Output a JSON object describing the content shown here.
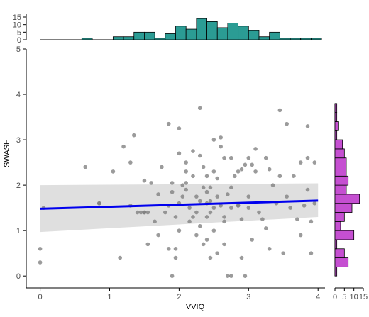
{
  "chart_data": {
    "type": "scatter",
    "xlabel": "VVIQ",
    "ylabel": "SWASH",
    "xlim": [
      -0.2,
      4.1
    ],
    "ylim": [
      -0.2,
      5.0
    ],
    "x_ticks": [
      "0",
      "1",
      "2",
      "3",
      "4"
    ],
    "y_ticks": [
      "0",
      "1",
      "2",
      "3",
      "4",
      "5"
    ],
    "grid": false,
    "colors": {
      "points": "#7f7f7f",
      "regression_line": "#0000ee",
      "confidence_band": "#d9d9d9",
      "top_histogram": "#2b9c94",
      "right_histogram": "#c54fd1"
    },
    "points": [
      [
        0.0,
        0.6
      ],
      [
        0.0,
        0.3
      ],
      [
        0.05,
        1.5
      ],
      [
        0.65,
        2.4
      ],
      [
        0.85,
        1.6
      ],
      [
        1.05,
        2.3
      ],
      [
        1.15,
        0.4
      ],
      [
        1.2,
        2.85
      ],
      [
        1.3,
        2.5
      ],
      [
        1.3,
        1.55
      ],
      [
        1.4,
        1.4
      ],
      [
        1.45,
        1.4
      ],
      [
        1.5,
        1.4
      ],
      [
        1.5,
        2.1
      ],
      [
        1.55,
        1.4
      ],
      [
        1.55,
        0.7
      ],
      [
        1.6,
        2.05
      ],
      [
        1.65,
        1.2
      ],
      [
        1.7,
        1.8
      ],
      [
        1.7,
        0.9
      ],
      [
        1.75,
        2.4
      ],
      [
        1.8,
        1.4
      ],
      [
        1.85,
        1.55
      ],
      [
        1.85,
        0.6
      ],
      [
        1.95,
        1.3
      ],
      [
        1.95,
        0.4
      ],
      [
        2.0,
        1.6
      ],
      [
        2.0,
        1.0
      ],
      [
        2.05,
        1.75
      ],
      [
        2.1,
        2.3
      ],
      [
        2.1,
        2.05
      ],
      [
        2.1,
        1.9
      ],
      [
        2.15,
        1.5
      ],
      [
        2.15,
        1.2
      ],
      [
        2.2,
        2.2
      ],
      [
        2.25,
        1.75
      ],
      [
        2.25,
        1.4
      ],
      [
        2.25,
        0.9
      ],
      [
        2.3,
        2.65
      ],
      [
        2.3,
        1.65
      ],
      [
        2.3,
        1.1
      ],
      [
        2.35,
        2.4
      ],
      [
        2.4,
        1.85
      ],
      [
        2.4,
        1.6
      ],
      [
        2.4,
        1.3
      ],
      [
        2.4,
        0.8
      ],
      [
        2.45,
        1.95
      ],
      [
        2.45,
        1.4
      ],
      [
        2.5,
        2.3
      ],
      [
        2.5,
        1.5
      ],
      [
        2.5,
        1.0
      ],
      [
        2.55,
        1.75
      ],
      [
        2.55,
        0.5
      ],
      [
        2.6,
        2.85
      ],
      [
        2.6,
        1.55
      ],
      [
        2.65,
        1.3
      ],
      [
        2.65,
        0.7
      ],
      [
        2.7,
        1.8
      ],
      [
        2.75,
        2.6
      ],
      [
        2.75,
        1.5
      ],
      [
        2.8,
        2.2
      ],
      [
        2.85,
        1.55
      ],
      [
        2.9,
        1.25
      ],
      [
        2.9,
        0.4
      ],
      [
        2.95,
        2.45
      ],
      [
        3.0,
        1.75
      ],
      [
        3.0,
        1.5
      ],
      [
        3.05,
        0.8
      ],
      [
        3.1,
        2.3
      ],
      [
        3.15,
        1.4
      ],
      [
        3.2,
        1.25
      ],
      [
        3.25,
        1.05
      ],
      [
        3.3,
        0.6
      ],
      [
        3.35,
        2.0
      ],
      [
        3.4,
        1.6
      ],
      [
        3.45,
        2.2
      ],
      [
        3.5,
        0.5
      ],
      [
        3.55,
        1.75
      ],
      [
        3.6,
        1.5
      ],
      [
        3.65,
        2.2
      ],
      [
        3.7,
        1.25
      ],
      [
        3.75,
        0.9
      ],
      [
        3.8,
        1.55
      ],
      [
        3.85,
        1.9
      ],
      [
        3.9,
        1.2
      ],
      [
        3.95,
        2.5
      ],
      [
        1.9,
        2.05
      ],
      [
        1.85,
        3.35
      ],
      [
        2.0,
        3.25
      ],
      [
        2.3,
        3.7
      ],
      [
        2.6,
        3.05
      ],
      [
        2.85,
        2.3
      ],
      [
        3.0,
        2.6
      ],
      [
        2.0,
        2.7
      ],
      [
        2.5,
        3.0
      ],
      [
        2.1,
        2.5
      ],
      [
        2.75,
        1.95
      ],
      [
        2.9,
        2.35
      ],
      [
        3.1,
        2.8
      ],
      [
        2.55,
        2.15
      ],
      [
        1.9,
        1.85
      ],
      [
        2.2,
        2.75
      ],
      [
        2.35,
        1.95
      ],
      [
        2.65,
        2.6
      ],
      [
        2.4,
        2.2
      ],
      [
        2.85,
        1.55
      ],
      [
        1.5,
        1.4
      ],
      [
        0.85,
        1.6
      ],
      [
        1.95,
        0.6
      ],
      [
        2.45,
        0.4
      ],
      [
        2.7,
        0.0
      ],
      [
        2.95,
        0.0
      ],
      [
        1.9,
        0.0
      ],
      [
        2.75,
        0.0
      ],
      [
        2.45,
        1.65
      ],
      [
        2.05,
        2.0
      ],
      [
        2.2,
        1.3
      ],
      [
        2.35,
        0.7
      ],
      [
        2.65,
        1.2
      ],
      [
        3.3,
        2.35
      ],
      [
        3.85,
        2.6
      ],
      [
        3.55,
        3.35
      ],
      [
        3.85,
        3.3
      ],
      [
        3.45,
        3.65
      ],
      [
        3.25,
        2.6
      ],
      [
        3.9,
        0.5
      ],
      [
        3.75,
        2.5
      ],
      [
        3.95,
        1.6
      ],
      [
        1.35,
        3.1
      ],
      [
        3.05,
        2.45
      ]
    ],
    "regression": {
      "x": [
        0,
        4
      ],
      "y": [
        1.48,
        1.66
      ],
      "ci_low": [
        0.97,
        1.3
      ],
      "ci_high": [
        2.0,
        2.04
      ]
    },
    "top_histogram": {
      "axis_ticks": [
        "0",
        "5",
        "10",
        "15"
      ],
      "bin_edges": [
        0.0,
        0.15,
        0.3,
        0.45,
        0.6,
        0.75,
        0.9,
        1.05,
        1.2,
        1.35,
        1.5,
        1.65,
        1.8,
        1.95,
        2.1,
        2.25,
        2.4,
        2.55,
        2.7,
        2.85,
        3.0,
        3.15,
        3.3,
        3.45,
        3.6,
        3.75,
        3.9,
        4.05
      ],
      "counts": [
        0,
        0,
        0,
        0,
        1,
        0,
        0,
        2,
        2,
        5,
        5,
        1,
        4,
        9,
        7,
        14,
        12,
        8,
        11,
        9,
        6,
        2,
        5,
        1,
        1,
        1,
        1
      ]
    },
    "right_histogram": {
      "axis_ticks": [
        "0",
        "5",
        "10",
        "15"
      ],
      "bin_edges": [
        0.0,
        0.2,
        0.4,
        0.6,
        0.8,
        1.0,
        1.2,
        1.4,
        1.6,
        1.8,
        2.0,
        2.2,
        2.4,
        2.6,
        2.8,
        3.0,
        3.2,
        3.4,
        3.6,
        3.8
      ],
      "counts": [
        1,
        7,
        5,
        1,
        10,
        3,
        5,
        9,
        13,
        6,
        7,
        6,
        6,
        5,
        4,
        1,
        2,
        1,
        1
      ]
    }
  }
}
